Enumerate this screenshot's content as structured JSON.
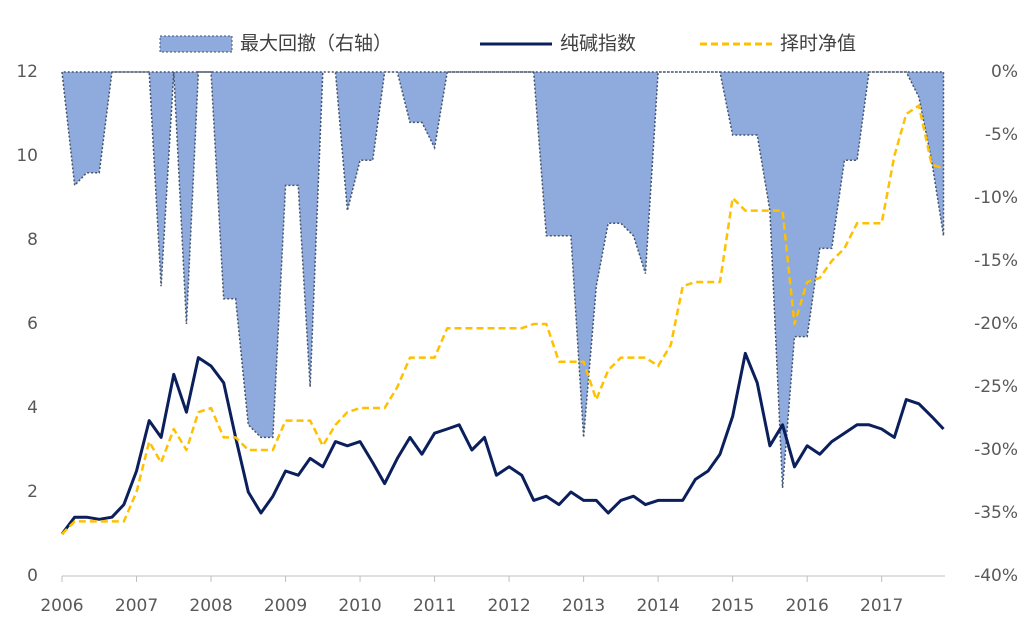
{
  "chart_data": {
    "type": "line",
    "x": [
      2006,
      2006.17,
      2006.33,
      2006.5,
      2006.67,
      2006.83,
      2007,
      2007.17,
      2007.33,
      2007.5,
      2007.67,
      2007.83,
      2008,
      2008.17,
      2008.33,
      2008.5,
      2008.67,
      2008.83,
      2009,
      2009.17,
      2009.33,
      2009.5,
      2009.67,
      2009.83,
      2010,
      2010.17,
      2010.33,
      2010.5,
      2010.67,
      2010.83,
      2011,
      2011.17,
      2011.33,
      2011.5,
      2011.67,
      2011.83,
      2012,
      2012.17,
      2012.33,
      2012.5,
      2012.67,
      2012.83,
      2013,
      2013.17,
      2013.33,
      2013.5,
      2013.67,
      2013.83,
      2014,
      2014.17,
      2014.33,
      2014.5,
      2014.67,
      2014.83,
      2015,
      2015.17,
      2015.33,
      2015.5,
      2015.67,
      2015.83,
      2016,
      2016.17,
      2016.33,
      2016.5,
      2016.67,
      2016.83,
      2017,
      2017.17,
      2017.33,
      2017.5,
      2017.67,
      2017.83
    ],
    "series": [
      {
        "name": "最大回撤（右轴）",
        "type": "area",
        "axis": "y2",
        "color": "#8faadc",
        "values": [
          0,
          -9,
          -8,
          -8,
          0,
          0,
          0,
          0,
          -17,
          0,
          -20,
          0,
          0,
          -18,
          -18,
          -28,
          -29,
          -29,
          -9,
          -9,
          -25,
          0,
          0,
          -11,
          -7,
          -7,
          0,
          0,
          -4,
          -4,
          -6,
          0,
          0,
          0,
          0,
          0,
          0,
          0,
          0,
          -13,
          -13,
          -13,
          -29,
          -17,
          -12,
          -12,
          -13,
          -16,
          0,
          0,
          0,
          0,
          0,
          0,
          -5,
          -5,
          -5,
          -11,
          -33,
          -21,
          -21,
          -14,
          -14,
          -7,
          -7,
          0,
          0,
          0,
          0,
          -2,
          -7,
          -13
        ]
      },
      {
        "name": "纯碱指数",
        "type": "line",
        "color": "#0b1f5c",
        "values": [
          1.0,
          1.4,
          1.4,
          1.35,
          1.4,
          1.7,
          2.5,
          3.7,
          3.3,
          4.8,
          3.9,
          5.2,
          5.0,
          4.6,
          3.3,
          2.0,
          1.5,
          1.9,
          2.5,
          2.4,
          2.8,
          2.6,
          3.2,
          3.1,
          3.2,
          2.7,
          2.2,
          2.8,
          3.3,
          2.9,
          3.4,
          3.5,
          3.6,
          3.0,
          3.3,
          2.4,
          2.6,
          2.4,
          1.8,
          1.9,
          1.7,
          2.0,
          1.8,
          1.8,
          1.5,
          1.8,
          1.9,
          1.7,
          1.8,
          1.8,
          1.8,
          2.3,
          2.5,
          2.9,
          3.8,
          5.3,
          4.6,
          3.1,
          3.6,
          2.6,
          3.1,
          2.9,
          3.2,
          3.4,
          3.6,
          3.6,
          3.5,
          3.3,
          4.2,
          4.1,
          3.8,
          3.5
        ]
      },
      {
        "name": "择时净值",
        "type": "dashed",
        "color": "#ffc000",
        "values": [
          1.0,
          1.3,
          1.3,
          1.3,
          1.3,
          1.3,
          2.0,
          3.2,
          2.7,
          3.5,
          3.0,
          3.9,
          4.0,
          3.3,
          3.3,
          3.0,
          3.0,
          3.0,
          3.7,
          3.7,
          3.7,
          3.1,
          3.6,
          3.9,
          4.0,
          4.0,
          4.0,
          4.5,
          5.2,
          5.2,
          5.2,
          5.9,
          5.9,
          5.9,
          5.9,
          5.9,
          5.9,
          5.9,
          6.0,
          6.0,
          5.1,
          5.1,
          5.1,
          4.2,
          4.9,
          5.2,
          5.2,
          5.2,
          5.0,
          5.5,
          6.9,
          7.0,
          7.0,
          7.0,
          9.0,
          8.7,
          8.7,
          8.7,
          8.7,
          6.0,
          7.0,
          7.1,
          7.5,
          7.8,
          8.4,
          8.4,
          8.4,
          10.0,
          11.0,
          11.2,
          9.8,
          9.7
        ]
      }
    ],
    "xlim": [
      2006,
      2017.85
    ],
    "xticks": [
      2006,
      2007,
      2008,
      2009,
      2010,
      2011,
      2012,
      2013,
      2014,
      2015,
      2016,
      2017
    ],
    "ylim": [
      0,
      12
    ],
    "yticks": [
      0,
      2,
      4,
      6,
      8,
      10,
      12
    ],
    "y2lim": [
      -40,
      0
    ],
    "y2ticks": [
      {
        "value": -40,
        "label": "-40%"
      },
      {
        "value": -35,
        "label": "-35%"
      },
      {
        "value": -30,
        "label": "-30%"
      },
      {
        "value": -25,
        "label": "-25%"
      },
      {
        "value": -20,
        "label": "-20%"
      },
      {
        "value": -15,
        "label": "-15%"
      },
      {
        "value": -10,
        "label": "-10%"
      },
      {
        "value": -5,
        "label": "-5%"
      },
      {
        "value": 0,
        "label": "0%"
      }
    ],
    "legend": "top"
  }
}
